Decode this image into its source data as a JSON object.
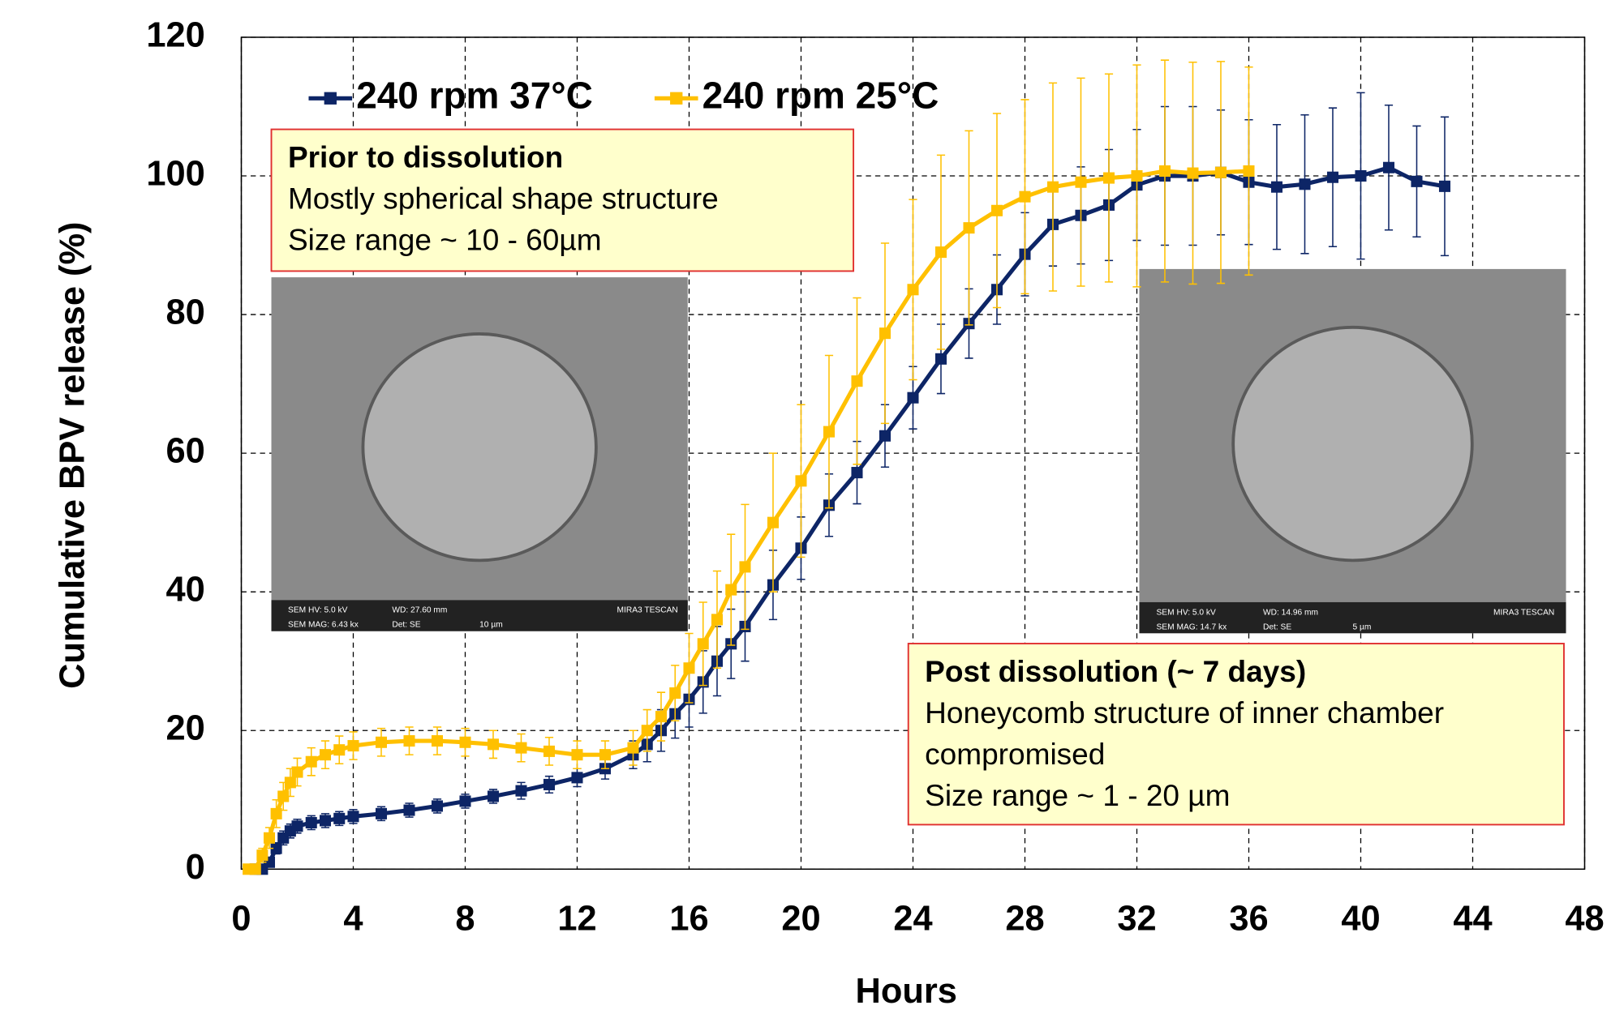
{
  "chart_data": {
    "type": "line",
    "xlabel": "Hours",
    "ylabel": "Cumulative BPV release (%)",
    "xlim": [
      0,
      48
    ],
    "xticks": [
      0,
      4,
      8,
      12,
      16,
      20,
      24,
      28,
      32,
      36,
      40,
      44,
      48
    ],
    "ylim": [
      0,
      120
    ],
    "yticks": [
      0,
      20,
      40,
      60,
      80,
      100,
      120
    ],
    "grid": true,
    "legend": "top-left",
    "series": [
      {
        "name": "240 rpm 37°C",
        "color": "#0d2566",
        "x": [
          0.5,
          0.75,
          1,
          1.25,
          1.5,
          1.75,
          2,
          2.5,
          3,
          3.5,
          4,
          5,
          6,
          7,
          8,
          9,
          10,
          11,
          12,
          13,
          14,
          14.5,
          15,
          15.5,
          16,
          16.5,
          17,
          17.5,
          18,
          19,
          20,
          21,
          22,
          23,
          24,
          25,
          26,
          27,
          28,
          29,
          30,
          31,
          32,
          33,
          34,
          35,
          36,
          37,
          38,
          39,
          40,
          41,
          42,
          43
        ],
        "values": [
          0,
          0,
          1,
          3,
          4.5,
          5.5,
          6.2,
          6.7,
          7,
          7.3,
          7.6,
          8,
          8.5,
          9.1,
          9.8,
          10.5,
          11.3,
          12.2,
          13.2,
          14.5,
          16.5,
          18,
          20,
          22.4,
          24.5,
          27,
          30,
          32.5,
          35,
          41,
          46.3,
          52.5,
          57.2,
          62.5,
          68,
          73.6,
          78.7,
          83.6,
          88.7,
          93,
          94.3,
          95.8,
          98.7,
          100,
          100,
          100.5,
          99.1,
          98.4,
          98.8,
          99.8,
          100,
          101.2,
          99.2,
          98.5
        ],
        "errors": [
          0,
          0,
          0.5,
          0.8,
          1,
          1,
          1,
          1,
          1,
          1,
          1,
          1,
          1,
          1,
          1,
          1,
          1.2,
          1.2,
          1.3,
          1.5,
          2,
          2.5,
          3,
          3.5,
          4,
          4.5,
          5,
          5,
          5,
          5,
          4.5,
          4.5,
          4.5,
          4.5,
          4.5,
          5,
          5,
          5,
          6,
          6,
          7,
          8,
          8,
          10,
          10,
          9,
          9,
          9,
          10,
          10,
          12,
          9,
          8,
          10
        ]
      },
      {
        "name": "240 rpm 25°C",
        "color": "#ffc000",
        "x": [
          0.25,
          0.5,
          0.75,
          1,
          1.25,
          1.5,
          1.75,
          2,
          2.5,
          3,
          3.5,
          4,
          5,
          6,
          7,
          8,
          9,
          10,
          11,
          12,
          13,
          14,
          14.5,
          15,
          15.5,
          16,
          16.5,
          17,
          17.5,
          18,
          19,
          20,
          21,
          22,
          23,
          24,
          25,
          26,
          27,
          28,
          29,
          30,
          31,
          32,
          33,
          34,
          35,
          36
        ],
        "values": [
          0,
          0,
          2,
          4.5,
          8,
          10.5,
          12.5,
          14,
          15.5,
          16.5,
          17.2,
          17.8,
          18.3,
          18.5,
          18.5,
          18.3,
          18,
          17.5,
          17,
          16.5,
          16.5,
          17.5,
          20,
          22,
          25.4,
          29,
          32.5,
          36,
          40.3,
          43.6,
          50,
          56,
          63.1,
          70.4,
          77.3,
          83.6,
          89,
          92.5,
          95,
          97,
          98.4,
          99.1,
          99.7,
          100,
          100.7,
          100.4,
          100.5,
          100.7
        ],
        "errors": [
          0,
          0,
          1,
          1.5,
          2,
          2,
          2,
          2,
          2,
          2,
          2,
          2,
          2,
          2,
          2,
          2,
          2,
          2,
          2,
          2,
          2,
          2.5,
          3,
          3.5,
          4,
          5,
          6,
          7,
          8,
          9,
          10,
          11,
          11,
          12,
          13,
          13,
          14,
          14,
          14,
          14,
          15,
          15,
          15,
          16,
          16,
          16,
          16,
          15
        ]
      }
    ],
    "annotations": [
      {
        "title": "Prior to dissolution",
        "lines": [
          "Mostly spherical shape structure",
          "Size range ~ 10 - 60µm"
        ]
      },
      {
        "title": "Post dissolution (~ 7 days)",
        "lines": [
          "Honeycomb structure of inner chamber",
          "compromised",
          "Size range ~ 1 - 20 µm"
        ]
      }
    ],
    "images": [
      {
        "captions": [
          "SEM HV: 5.0 kV",
          "WD: 27.60 mm",
          "MIRA3 TESCAN",
          "SEM MAG: 6.43 kx",
          "Det: SE",
          "10 µm"
        ]
      },
      {
        "captions": [
          "SEM HV: 5.0 kV",
          "WD: 14.96 mm",
          "MIRA3 TESCAN",
          "SEM MAG: 14.7 kx",
          "Det: SE",
          "5 µm"
        ]
      }
    ]
  }
}
